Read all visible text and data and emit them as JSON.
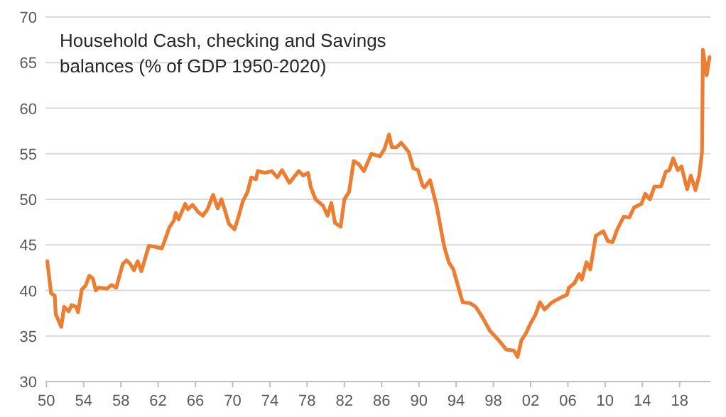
{
  "chart_data": {
    "type": "line",
    "title": "Household Cash, checking and Savings balances (% of GDP 1950-2020)",
    "x": [
      1950.1,
      1950.5,
      1950.9,
      1951,
      1951.6,
      1951.9,
      1952.4,
      1952.7,
      1953.2,
      1953.4,
      1953.8,
      1954.2,
      1954.6,
      1955,
      1955.3,
      1955.6,
      1956.5,
      1957,
      1957.5,
      1958.2,
      1958.6,
      1959,
      1959.4,
      1959.8,
      1960.2,
      1961,
      1961.6,
      1962.4,
      1963.2,
      1963.7,
      1963.9,
      1964.2,
      1964.9,
      1965.2,
      1965.7,
      1966.3,
      1966.8,
      1967.3,
      1967.9,
      1968.4,
      1968.8,
      1969.2,
      1969.6,
      1970.2,
      1970.6,
      1971.1,
      1971.6,
      1972,
      1972.5,
      1972.7,
      1973.5,
      1974.2,
      1974.8,
      1975.3,
      1976.1,
      1977.1,
      1977.6,
      1978.1,
      1978.4,
      1978.9,
      1979.7,
      1980.2,
      1980.6,
      1981,
      1981.6,
      1982,
      1982.5,
      1983,
      1983.5,
      1984.1,
      1984.9,
      1985.8,
      1986.3,
      1986.8,
      1987.1,
      1987.6,
      1988.1,
      1988.9,
      1989.4,
      1989.9,
      1990.4,
      1990.6,
      1991.2,
      1991.9,
      1992.7,
      1993.2,
      1993.7,
      1994.7,
      1995.5,
      1996.1,
      1996.8,
      1997.6,
      1998.6,
      1999.4,
      2000.2,
      2000.6,
      2001,
      2001.5,
      2002,
      2002.5,
      2003,
      2003.5,
      2004.3,
      2005.4,
      2005.9,
      2006.1,
      2006.7,
      2007.2,
      2007.5,
      2008,
      2008.4,
      2009,
      2009.8,
      2010.3,
      2010.8,
      2011.3,
      2012,
      2012.6,
      2013.1,
      2013.9,
      2014.3,
      2014.8,
      2015.3,
      2016,
      2016.5,
      2016.9,
      2017.3,
      2017.8,
      2018.2,
      2018.8,
      2019.2,
      2019.7,
      2020.1,
      2020.4,
      2020.5,
      2020.9,
      2021.2
    ],
    "series": [
      {
        "color": "#ed7d31",
        "values": [
          43.2,
          39.7,
          39.4,
          37.4,
          36.0,
          38.2,
          37.7,
          38.4,
          38.2,
          37.6,
          40.1,
          40.5,
          41.6,
          41.3,
          40.0,
          40.3,
          40.2,
          40.6,
          40.3,
          42.9,
          43.3,
          42.9,
          42.2,
          43.2,
          42.1,
          44.9,
          44.8,
          44.6,
          46.9,
          47.7,
          48.5,
          47.8,
          49.5,
          48.9,
          49.4,
          48.6,
          48.2,
          48.9,
          50.5,
          49.0,
          50.0,
          48.7,
          47.3,
          46.7,
          48.0,
          49.8,
          50.8,
          52.4,
          52.2,
          53.1,
          52.9,
          53.1,
          52.4,
          53.2,
          51.8,
          53.1,
          52.6,
          52.9,
          51.3,
          50.0,
          49.3,
          48.2,
          49.6,
          47.4,
          47.0,
          50.0,
          50.8,
          54.2,
          53.9,
          53.1,
          55.0,
          54.7,
          55.5,
          57.1,
          55.7,
          55.7,
          56.2,
          55.2,
          53.4,
          53.2,
          51.5,
          51.3,
          52.1,
          49.3,
          44.9,
          43.1,
          42.3,
          38.7,
          38.6,
          38.2,
          37.1,
          35.6,
          34.5,
          33.5,
          33.4,
          32.7,
          34.5,
          35.3,
          36.4,
          37.3,
          38.7,
          37.9,
          38.7,
          39.3,
          39.5,
          40.3,
          40.8,
          41.8,
          41.2,
          43.1,
          42.3,
          46.0,
          46.5,
          45.4,
          45.3,
          46.7,
          48.1,
          48.0,
          49.1,
          49.5,
          50.6,
          50.0,
          51.4,
          51.4,
          53.0,
          53.2,
          54.5,
          53.2,
          53.6,
          51.1,
          52.6,
          51.0,
          52.6,
          55.2,
          66.4,
          63.6,
          65.6
        ]
      }
    ],
    "xlim": [
      1949.9,
      2021.3
    ],
    "xticks": [
      {
        "value": 1950,
        "label": "50"
      },
      {
        "value": 1954,
        "label": "54"
      },
      {
        "value": 1958,
        "label": "58"
      },
      {
        "value": 1962,
        "label": "62"
      },
      {
        "value": 1966,
        "label": "66"
      },
      {
        "value": 1970,
        "label": "70"
      },
      {
        "value": 1974,
        "label": "74"
      },
      {
        "value": 1978,
        "label": "78"
      },
      {
        "value": 1982,
        "label": "82"
      },
      {
        "value": 1986,
        "label": "86"
      },
      {
        "value": 1990,
        "label": "90"
      },
      {
        "value": 1994,
        "label": "94"
      },
      {
        "value": 1998,
        "label": "98"
      },
      {
        "value": 2002,
        "label": "02"
      },
      {
        "value": 2006,
        "label": "06"
      },
      {
        "value": 2010,
        "label": "10"
      },
      {
        "value": 2014,
        "label": "14"
      },
      {
        "value": 2018,
        "label": "18"
      }
    ],
    "ylim": [
      30,
      70
    ],
    "yticks": [
      30,
      35,
      40,
      45,
      50,
      55,
      60,
      65,
      70
    ],
    "grid": "y"
  }
}
